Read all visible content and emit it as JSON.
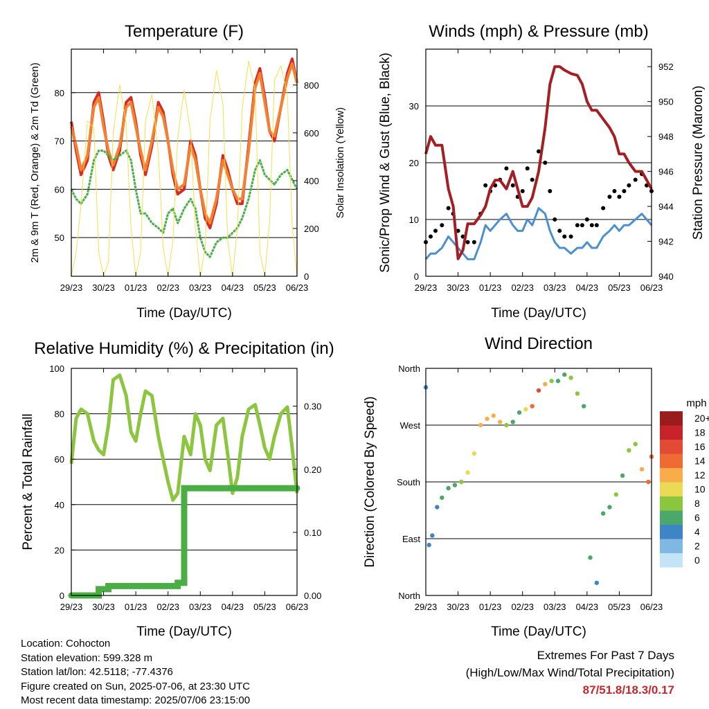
{
  "x_ticks": [
    "29/23",
    "30/23",
    "01/23",
    "02/23",
    "03/23",
    "04/23",
    "05/23",
    "06/23"
  ],
  "panels": {
    "temperature": {
      "title": "Temperature (F)",
      "xlabel": "Time (Day/UTC)",
      "ylabel_left": "2m & 9m T (Red, Orange) & 2m Td (Green)",
      "ylabel_right": "Solar Insolation (Yellow)"
    },
    "winds": {
      "title": "Winds (mph) & Pressure (mb)",
      "xlabel": "Time (Day/UTC)",
      "ylabel_left": "Sonic/Prop Wind & Gust (Blue, Black)",
      "ylabel_right": "Station Pressure (Maroon)"
    },
    "humidity": {
      "title": "Relative Humidity (%) & Precipitation (in)",
      "xlabel": "Time (Day/UTC)",
      "ylabel_left": "Percent & Total Rainfall"
    },
    "direction": {
      "title": "Wind Direction",
      "xlabel": "Time (Day/UTC)",
      "ylabel_left": "Direction (Colored By Speed)",
      "legend_title": "mph",
      "legend_labels": [
        "20+",
        "18",
        "16",
        "14",
        "12",
        "10",
        "8",
        "6",
        "4",
        "2",
        "0"
      ],
      "legend_colors": [
        "#9a1c1c",
        "#c8232a",
        "#e34a33",
        "#f06a34",
        "#f9ad4a",
        "#e9d955",
        "#8cc63f",
        "#4ba76a",
        "#3d85c6",
        "#7fb8e3",
        "#c3e4f7"
      ]
    }
  },
  "info": {
    "location": "Location: Cohocton",
    "elevation": "Station elevation: 599.328 m",
    "latlon": "Station lat/lon: 42.5118; -77.4376",
    "created": "Figure created on Sun, 2025-07-06, at 23:30 UTC",
    "recent": "Most recent data timestamp: 2025/07/06 23:15:00"
  },
  "extremes": {
    "line1": "Extremes For Past 7 Days",
    "line2": "(High/Low/Max Wind/Total Precipitation)",
    "values": "87/51.8/18.3/0.17"
  },
  "chart_data": [
    {
      "type": "line",
      "title": "Temperature (F)",
      "xlabel": "Time (Day/UTC)",
      "ylabel": "2m & 9m T (Red, Orange) & 2m Td (Green)",
      "y2label": "Solar Insolation (Yellow)",
      "x_days": [
        0,
        0.15,
        0.3,
        0.5,
        0.7,
        0.85,
        1.0,
        1.15,
        1.3,
        1.5,
        1.7,
        1.85,
        2.0,
        2.15,
        2.3,
        2.5,
        2.7,
        2.85,
        3.0,
        3.15,
        3.3,
        3.5,
        3.7,
        3.85,
        4.0,
        4.15,
        4.3,
        4.5,
        4.7,
        4.85,
        5.0,
        5.15,
        5.3,
        5.5,
        5.7,
        5.85,
        6.0,
        6.15,
        6.3,
        6.5,
        6.7,
        6.85,
        7.0
      ],
      "ylim": [
        42,
        89
      ],
      "y2lim": [
        0,
        950
      ],
      "series": [
        {
          "name": "2m T",
          "color": "#d62a24",
          "values": [
            74,
            68,
            63,
            66,
            78,
            80,
            74,
            67,
            64,
            68,
            78,
            79,
            74,
            67,
            63,
            69,
            78,
            76,
            70,
            63,
            59,
            60,
            70,
            67,
            60,
            54,
            52,
            57,
            67,
            64,
            60,
            57,
            57,
            69,
            82,
            85,
            79,
            72,
            70,
            77,
            84,
            87,
            82
          ]
        },
        {
          "name": "9m T",
          "color": "#f4812f",
          "values": [
            73,
            69,
            64,
            67,
            77,
            79,
            73,
            68,
            65,
            69,
            77,
            78,
            73,
            68,
            64,
            70,
            77,
            75,
            70,
            64,
            60,
            61,
            69,
            66,
            60,
            55,
            53,
            58,
            66,
            63,
            60,
            58,
            58,
            68,
            81,
            84,
            78,
            72,
            71,
            77,
            83,
            86,
            82
          ]
        },
        {
          "name": "2m Td",
          "color": "#4aae45",
          "values": [
            60,
            58,
            57,
            59,
            66,
            68,
            68,
            67,
            66,
            67,
            68,
            66,
            60,
            55,
            55,
            53,
            52,
            51,
            55,
            56,
            53,
            56,
            58,
            56,
            50,
            47,
            46,
            49,
            50,
            50,
            51,
            52,
            54,
            58,
            64,
            66,
            63,
            62,
            61,
            63,
            64,
            62,
            60
          ]
        },
        {
          "name": "Solar Insolation",
          "color": "#f5df4d",
          "axis": "right",
          "values": [
            0,
            100,
            300,
            650,
            620,
            100,
            0,
            60,
            600,
            800,
            640,
            200,
            0,
            100,
            650,
            760,
            520,
            120,
            0,
            150,
            580,
            780,
            600,
            200,
            0,
            120,
            650,
            860,
            720,
            150,
            0,
            200,
            700,
            900,
            780,
            100,
            0,
            230,
            820,
            880,
            760,
            210,
            0
          ]
        }
      ]
    },
    {
      "type": "line",
      "title": "Winds (mph) & Pressure (mb)",
      "xlabel": "Time (Day/UTC)",
      "ylabel": "Sonic/Prop Wind & Gust (Blue, Black)",
      "y2label": "Station Pressure (Maroon)",
      "x_days": [
        0,
        0.15,
        0.3,
        0.5,
        0.7,
        0.85,
        1.0,
        1.15,
        1.3,
        1.5,
        1.7,
        1.85,
        2.0,
        2.15,
        2.3,
        2.5,
        2.7,
        2.85,
        3.0,
        3.15,
        3.3,
        3.5,
        3.7,
        3.85,
        4.0,
        4.15,
        4.3,
        4.5,
        4.7,
        4.85,
        5.0,
        5.15,
        5.3,
        5.5,
        5.7,
        5.85,
        6.0,
        6.15,
        6.3,
        6.5,
        6.7,
        6.85,
        7.0
      ],
      "ylim": [
        0,
        40
      ],
      "y2lim": [
        940,
        953
      ],
      "series": [
        {
          "name": "Wind",
          "color": "#4a8fd0",
          "values": [
            3,
            4,
            4,
            5,
            7,
            6,
            5,
            4,
            3,
            3,
            6,
            9,
            8,
            9,
            10,
            11,
            9,
            8,
            8,
            10,
            9,
            12,
            11,
            8,
            6,
            5,
            5,
            4,
            5,
            5,
            6,
            5,
            5,
            7,
            8,
            9,
            8,
            9,
            9,
            10,
            11,
            10,
            9
          ]
        },
        {
          "name": "Gust",
          "color": "#000000",
          "values": [
            6,
            7,
            8,
            9,
            12,
            11,
            8,
            7,
            6,
            6,
            11,
            16,
            15,
            16,
            17,
            19,
            16,
            14,
            15,
            19,
            17,
            22,
            20,
            15,
            10,
            8,
            7,
            7,
            9,
            9,
            10,
            9,
            9,
            12,
            14,
            15,
            14,
            15,
            16,
            17,
            18,
            16,
            15
          ]
        },
        {
          "name": "Station Pressure",
          "color": "#a31f24",
          "axis": "right",
          "values": [
            947,
            948,
            947.5,
            947.5,
            945,
            944,
            941,
            941.5,
            943,
            943,
            943.5,
            944,
            945,
            945.5,
            945.5,
            945,
            946,
            945,
            944,
            944,
            944.5,
            946,
            948.5,
            951,
            952,
            952,
            951.8,
            951.6,
            951.5,
            951,
            950,
            949.5,
            949.5,
            949,
            948.5,
            948,
            947,
            947,
            946.5,
            946,
            946,
            945.5,
            945
          ]
        }
      ]
    },
    {
      "type": "line",
      "title": "Relative Humidity (%) & Precipitation (in)",
      "xlabel": "Time (Day/UTC)",
      "ylabel": "Percent & Total Rainfall",
      "x_days": [
        0,
        0.15,
        0.3,
        0.5,
        0.7,
        0.85,
        1.0,
        1.15,
        1.3,
        1.5,
        1.7,
        1.85,
        2.0,
        2.15,
        2.3,
        2.5,
        2.7,
        2.85,
        3.0,
        3.15,
        3.3,
        3.5,
        3.7,
        3.85,
        4.0,
        4.15,
        4.3,
        4.5,
        4.7,
        4.85,
        5.0,
        5.15,
        5.3,
        5.5,
        5.7,
        5.85,
        6.0,
        6.15,
        6.3,
        6.5,
        6.7,
        6.85,
        7.0
      ],
      "ylim": [
        0,
        100
      ],
      "y2lim": [
        0,
        0.36
      ],
      "series": [
        {
          "name": "Relative Humidity",
          "color": "#8cc63f",
          "values": [
            58,
            78,
            82,
            80,
            68,
            64,
            62,
            75,
            95,
            97,
            88,
            72,
            68,
            80,
            90,
            88,
            70,
            60,
            50,
            42,
            45,
            70,
            62,
            80,
            75,
            60,
            55,
            75,
            78,
            62,
            45,
            52,
            70,
            82,
            84,
            75,
            65,
            60,
            70,
            80,
            83,
            65,
            45
          ]
        },
        {
          "name": "Total Precipitation",
          "color": "#4aae45",
          "axis": "right",
          "values": [
            0,
            0,
            0,
            0,
            0,
            0.01,
            0.01,
            0.015,
            0.015,
            0.015,
            0.015,
            0.015,
            0.015,
            0.015,
            0.015,
            0.015,
            0.015,
            0.015,
            0.015,
            0.015,
            0.02,
            0.17,
            0.17,
            0.17,
            0.17,
            0.17,
            0.17,
            0.17,
            0.17,
            0.17,
            0.17,
            0.17,
            0.17,
            0.17,
            0.17,
            0.17,
            0.17,
            0.17,
            0.17,
            0.17,
            0.17,
            0.17,
            0.17
          ]
        }
      ]
    },
    {
      "type": "scatter",
      "title": "Wind Direction",
      "xlabel": "Time (Day/UTC)",
      "ylabel": "Direction (Colored By Speed)",
      "y_categories": [
        "North",
        "East",
        "South",
        "West",
        "North"
      ],
      "ylim": [
        0,
        360
      ],
      "colorbar_label": "mph",
      "x_days": [
        0,
        0.1,
        0.2,
        0.35,
        0.5,
        0.7,
        0.9,
        1.1,
        1.3,
        1.5,
        1.7,
        1.9,
        2.1,
        2.3,
        2.5,
        2.7,
        2.9,
        3.1,
        3.3,
        3.5,
        3.7,
        3.9,
        4.1,
        4.3,
        4.5,
        4.7,
        4.9,
        5.1,
        5.3,
        5.5,
        5.7,
        5.9,
        6.1,
        6.3,
        6.5,
        6.7,
        6.9,
        7.0
      ],
      "directions": [
        330,
        80,
        95,
        140,
        155,
        170,
        175,
        180,
        195,
        225,
        270,
        280,
        285,
        275,
        270,
        275,
        290,
        295,
        300,
        325,
        335,
        340,
        340,
        350,
        345,
        320,
        300,
        60,
        20,
        130,
        140,
        160,
        190,
        230,
        240,
        200,
        180,
        220
      ],
      "speeds": [
        3,
        4,
        3,
        4,
        5,
        6,
        6,
        8,
        9,
        10,
        11,
        11,
        12,
        12,
        8,
        6,
        6,
        10,
        14,
        16,
        12,
        8,
        5,
        6,
        8,
        7,
        5,
        5,
        4,
        5,
        6,
        7,
        6,
        7,
        8,
        12,
        14,
        13
      ]
    }
  ]
}
